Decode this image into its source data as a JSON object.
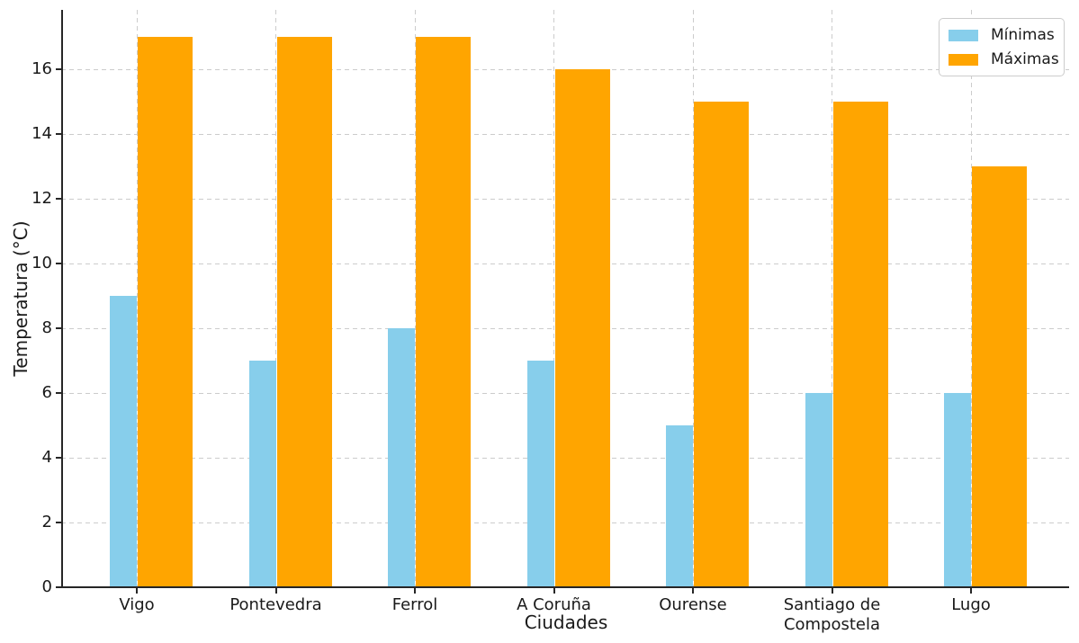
{
  "chart_data": {
    "type": "bar",
    "title": "",
    "xlabel": "Ciudades",
    "ylabel": "Temperatura (°C)",
    "categories": [
      "Vigo",
      "Pontevedra",
      "Ferrol",
      "A Coruña",
      "Ourense",
      "Santiago de Compostela",
      "Lugo"
    ],
    "series": [
      {
        "name": "Mínimas",
        "color": "#87CEEB",
        "values": [
          9,
          7,
          8,
          7,
          5,
          6,
          6
        ]
      },
      {
        "name": "Máximas",
        "color": "#FFA500",
        "values": [
          17,
          17,
          17,
          16,
          15,
          15,
          13
        ]
      }
    ],
    "yticks": [
      0,
      2,
      4,
      6,
      8,
      10,
      12,
      14,
      16
    ],
    "ylim": [
      0,
      17.8
    ],
    "grid": true,
    "grid_style": "dashed",
    "grid_color": "#cccccc",
    "axis_color": "#262626",
    "legend": {
      "position": "upper right",
      "labels": [
        "Mínimas",
        "Máximas"
      ]
    }
  }
}
